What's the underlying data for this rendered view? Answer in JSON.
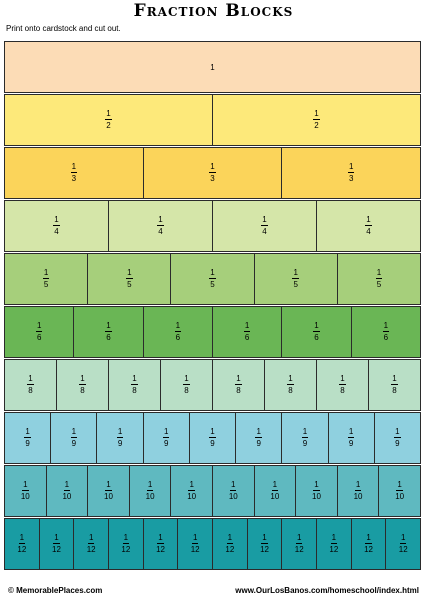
{
  "title": "Fraction Blocks",
  "subtitle": "Print onto cardstock and cut out.",
  "rows": [
    {
      "denominator": 1,
      "label": "1",
      "color": "#fcdcb6"
    },
    {
      "denominator": 2,
      "label": "2",
      "color": "#fde97a"
    },
    {
      "denominator": 3,
      "label": "3",
      "color": "#fbd45a"
    },
    {
      "denominator": 4,
      "label": "4",
      "color": "#d5e6a9"
    },
    {
      "denominator": 5,
      "label": "5",
      "color": "#a6cf7b"
    },
    {
      "denominator": 6,
      "label": "6",
      "color": "#6ab655"
    },
    {
      "denominator": 8,
      "label": "8",
      "color": "#b9dfc6"
    },
    {
      "denominator": 9,
      "label": "9",
      "color": "#8fd0df"
    },
    {
      "denominator": 10,
      "label": "10",
      "color": "#5fb9c0"
    },
    {
      "denominator": 12,
      "label": "12",
      "color": "#199ca3"
    }
  ],
  "numerator": "1",
  "footer": {
    "left": "© MemorablePlaces.com",
    "right": "www.OurLosBanos.com/homeschool/index.html"
  }
}
